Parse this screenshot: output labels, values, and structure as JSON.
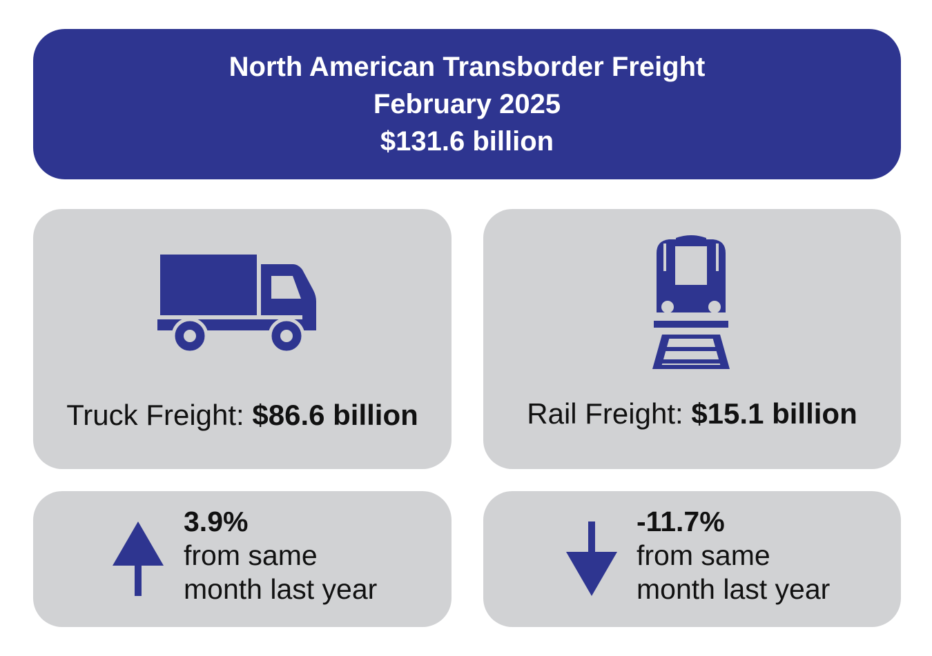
{
  "header": {
    "title": "North American Transborder Freight",
    "period": "February 2025",
    "total": "$131.6 billion"
  },
  "truck": {
    "icon": "truck-icon",
    "label": "Truck Freight: ",
    "value": "$86.6 billion",
    "change": {
      "direction": "up",
      "icon": "arrow-up-icon",
      "percent": "3.9%",
      "line1": "from same",
      "line2": "month last year"
    }
  },
  "rail": {
    "icon": "train-icon",
    "label": "Rail Freight: ",
    "value": "$15.1 billion",
    "change": {
      "direction": "down",
      "icon": "arrow-down-icon",
      "percent": "-11.7%",
      "line1": "from same",
      "line2": "month last year"
    }
  },
  "colors": {
    "primary": "#2e3590",
    "card_background": "#d1d2d4",
    "text": "#111111"
  }
}
